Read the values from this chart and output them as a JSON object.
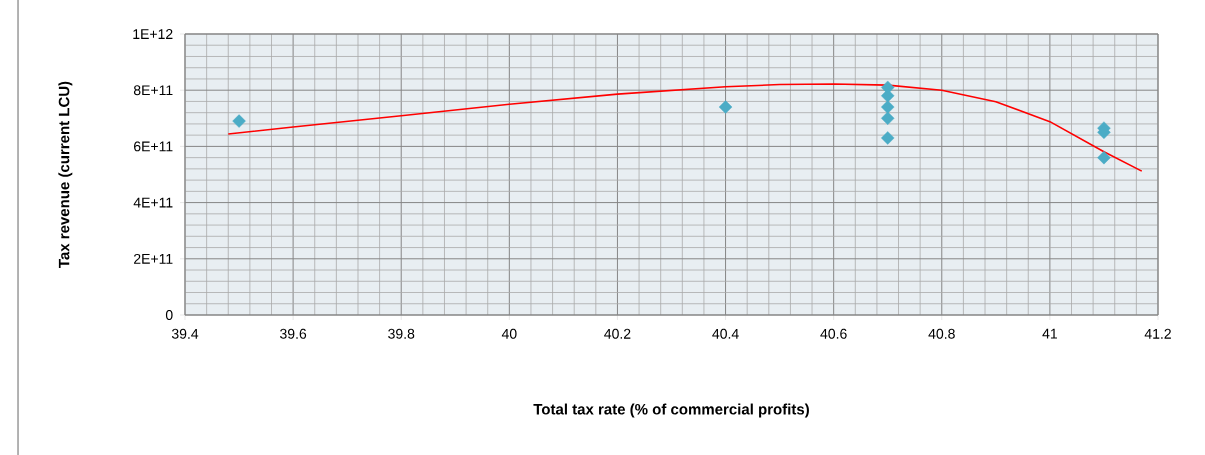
{
  "chart_data": {
    "type": "scatter",
    "xlabel": "Total tax rate (% of commercial profits)",
    "ylabel": "Tax revenue (current LCU)",
    "series": [
      {
        "color": "#4bacc6",
        "marker": "diamond",
        "x": [
          39.5,
          40.4,
          40.7,
          40.7,
          40.7,
          40.7,
          40.7,
          41.1,
          41.1,
          41.1
        ],
        "values": [
          690000000000.0,
          740000000000.0,
          810000000000.0,
          780000000000.0,
          740000000000.0,
          700000000000.0,
          630000000000.0,
          665000000000.0,
          650000000000.0,
          560000000000.0
        ]
      },
      {
        "type": "line",
        "color": "#ff0000",
        "marker": "none",
        "x": [
          39.48,
          39.6,
          39.8,
          40.0,
          40.2,
          40.4,
          40.5,
          40.6,
          40.7,
          40.8,
          40.9,
          41.0,
          41.1,
          41.17
        ],
        "values": [
          644000000000.0,
          669000000000.0,
          709000000000.0,
          750000000000.0,
          786000000000.0,
          812000000000.0,
          820000000000.0,
          822000000000.0,
          818000000000.0,
          800000000000.0,
          759000000000.0,
          688000000000.0,
          581000000000.0,
          512000000000.0
        ]
      }
    ],
    "xlim": [
      39.4,
      41.2
    ],
    "xticks": [
      39.4,
      39.6,
      39.8,
      40,
      40.2,
      40.4,
      40.6,
      40.8,
      41,
      41.2
    ],
    "ylim": [
      0,
      1000000000000.0
    ],
    "yticks": [
      0,
      {
        "value": 200000000000.0,
        "label": "2E+11"
      },
      {
        "value": 400000000000.0,
        "label": "4E+11"
      },
      {
        "value": 600000000000.0,
        "label": "6E+11"
      },
      {
        "value": 800000000000.0,
        "label": "8E+11"
      },
      {
        "value": 1000000000000.0,
        "label": "1E+12"
      }
    ],
    "grid": true
  }
}
